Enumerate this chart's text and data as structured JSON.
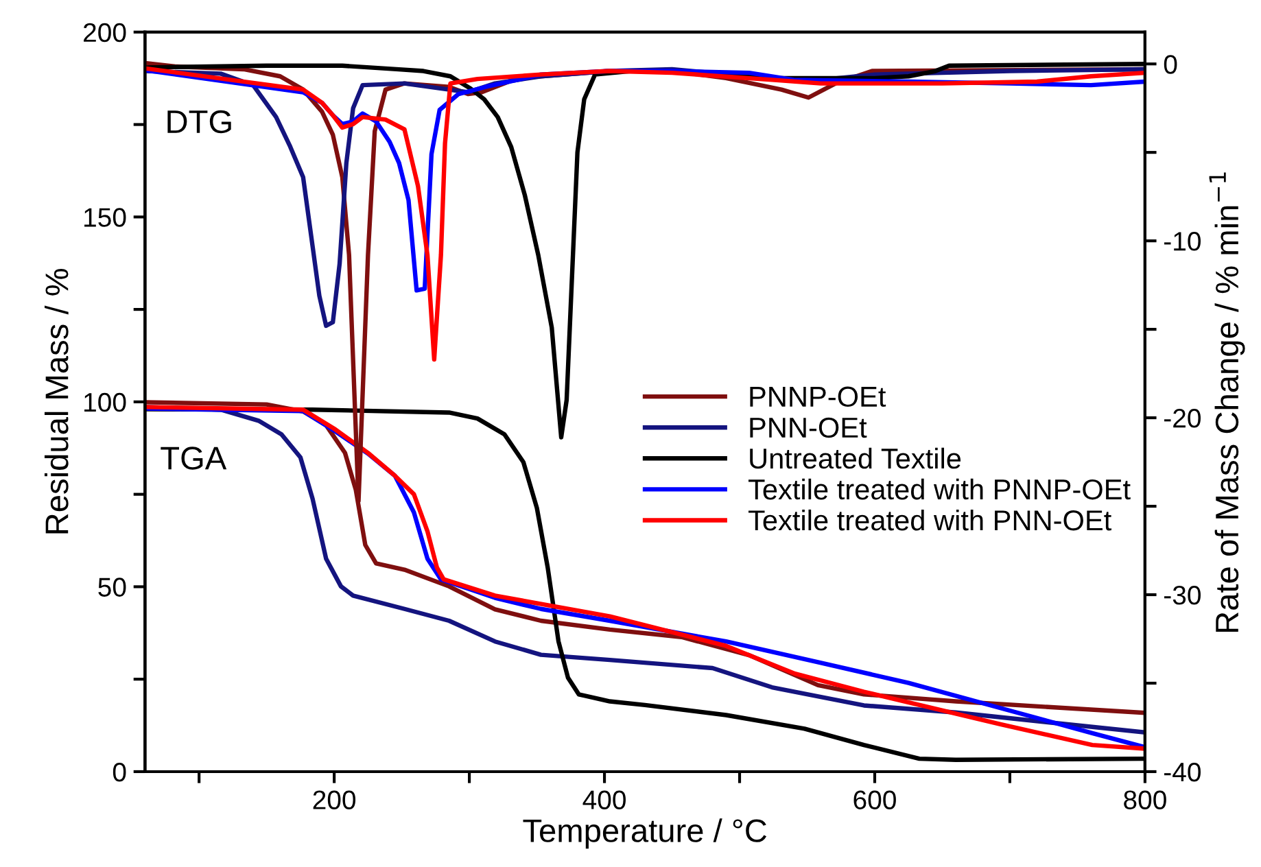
{
  "chart_data": {
    "type": "line",
    "xlabel": "Temperature / °C",
    "ylabel": "Residual Mass / %",
    "y2label": "Rate of Mass Change / % min$^{−1}$",
    "xlim": [
      60,
      800
    ],
    "xticks": [
      {
        "value": 100,
        "label": null
      },
      200,
      {
        "value": 300,
        "label": null
      },
      400,
      {
        "value": 500,
        "label": null
      },
      600,
      {
        "value": 700,
        "label": null
      },
      800
    ],
    "ylim": [
      0,
      200
    ],
    "yticks": [
      0,
      {
        "value": 25,
        "label": null
      },
      50,
      {
        "value": 75,
        "label": null
      },
      100,
      {
        "value": 125,
        "label": null
      },
      150,
      {
        "value": 175,
        "label": null
      },
      200
    ],
    "y2lim": [
      -40,
      1.8
    ],
    "y2ticks": [
      -40,
      {
        "value": -35,
        "label": null
      },
      -30,
      {
        "value": -25,
        "label": null
      },
      -20,
      {
        "value": -15,
        "label": null
      },
      -10,
      {
        "value": -5,
        "label": null
      },
      0
    ],
    "grid": false,
    "legend": "right",
    "line_style": "solid",
    "annotations": [
      "DTG",
      "TGA"
    ],
    "series": [
      {
        "name": "PNNP-OEt",
        "color": "#7f0f0f",
        "x": [
          60,
          150,
          177,
          194,
          208,
          216,
          223,
          231,
          252,
          285,
          319,
          353,
          404,
          457,
          507,
          558,
          592,
          660,
          800
        ],
        "values": [
          99.9,
          99.3,
          97.4,
          93.7,
          86.2,
          76.2,
          61.3,
          56.3,
          54.6,
          50.1,
          43.9,
          40.8,
          38.4,
          36.4,
          31.5,
          23.4,
          20.9,
          19.0,
          15.9
        ]
      },
      {
        "name": "PNN-OEt",
        "color": "#14147f",
        "x": [
          60,
          116,
          144,
          161,
          175,
          184,
          194,
          205,
          214,
          252,
          285,
          319,
          353,
          404,
          480,
          524,
          592,
          660,
          727,
          800
        ],
        "values": [
          98.6,
          97.9,
          94.9,
          91.2,
          85.0,
          73.8,
          57.6,
          50.1,
          47.6,
          44.0,
          40.8,
          35.2,
          31.6,
          30.2,
          28.0,
          22.8,
          17.9,
          16.0,
          13.4,
          10.6
        ]
      },
      {
        "name": "Untreated Textile",
        "color": "#000000",
        "x": [
          60,
          184,
          285,
          306,
          326,
          340,
          350,
          358,
          366,
          373,
          381,
          404,
          430,
          490,
          548,
          592,
          633,
          660,
          800
        ],
        "values": [
          98.0,
          97.9,
          97.1,
          95.5,
          91.2,
          83.7,
          71.3,
          55.2,
          35.2,
          25.4,
          20.9,
          19.0,
          18.0,
          15.3,
          11.6,
          7.2,
          3.5,
          3.2,
          3.5
        ]
      },
      {
        "name": "Textile treated with PNNP-OEt",
        "color": "#0000ff",
        "x": [
          60,
          177,
          201,
          225,
          245,
          259,
          269,
          279,
          319,
          353,
          404,
          490,
          558,
          625,
          693,
          761,
          800
        ],
        "values": [
          98.2,
          97.5,
          92.0,
          86.0,
          80.0,
          70.1,
          57.6,
          52.0,
          47.0,
          44.0,
          40.8,
          35.2,
          29.6,
          24.0,
          17.2,
          10.4,
          6.6
        ]
      },
      {
        "name": "Textile treated with PNN-OEt",
        "color": "#ff0000",
        "x": [
          60,
          177,
          201,
          225,
          245,
          259,
          269,
          276,
          281,
          319,
          404,
          490,
          541,
          592,
          693,
          761,
          800
        ],
        "values": [
          98.6,
          97.9,
          92.5,
          86.2,
          80.0,
          75.0,
          65.0,
          55.2,
          52.0,
          47.6,
          42.0,
          34.0,
          26.5,
          21.6,
          12.8,
          7.2,
          6.2
        ]
      },
      {
        "color": "#7f0f0f",
        "axis": "y2",
        "x": [
          60,
          83,
          133,
          160,
          177,
          191,
          199,
          206,
          211,
          218,
          225,
          230,
          238,
          252,
          285,
          299,
          309,
          336,
          404,
          450,
          490,
          531,
          551,
          571,
          598,
          800
        ],
        "values": [
          0.05,
          -0.15,
          -0.3,
          -0.7,
          -1.45,
          -2.7,
          -4.0,
          -6.4,
          -10.8,
          -24.7,
          -10.8,
          -3.8,
          -1.45,
          -1.1,
          -1.3,
          -1.7,
          -1.6,
          -0.8,
          -0.4,
          -0.4,
          -0.8,
          -1.45,
          -1.9,
          -1.1,
          -0.4,
          -0.3
        ]
      },
      {
        "color": "#14147f",
        "axis": "y2",
        "x": [
          60,
          116,
          140,
          157,
          167,
          177,
          184,
          189,
          194,
          199,
          204,
          209,
          214,
          221,
          252,
          285,
          299,
          319,
          353,
          404,
          450,
          524,
          560,
          600,
          700,
          800
        ],
        "values": [
          -0.4,
          -0.55,
          -1.2,
          -3.0,
          -4.6,
          -6.4,
          -10.3,
          -13.1,
          -14.8,
          -14.6,
          -11.3,
          -5.6,
          -2.5,
          -1.2,
          -1.1,
          -1.45,
          -1.6,
          -1.1,
          -0.7,
          -0.4,
          -0.3,
          -0.8,
          -0.9,
          -0.6,
          -0.4,
          -0.3
        ]
      },
      {
        "color": "#000000",
        "axis": "y2",
        "x": [
          60,
          150,
          206,
          246,
          266,
          286,
          301,
          311,
          321,
          331,
          341,
          351,
          361,
          368,
          372,
          376,
          380,
          385,
          393,
          420,
          480,
          524,
          600,
          625,
          645,
          655,
          800
        ],
        "values": [
          -0.2,
          -0.1,
          -0.1,
          -0.3,
          -0.4,
          -0.7,
          -1.4,
          -2.0,
          -3.0,
          -4.7,
          -7.4,
          -10.8,
          -14.9,
          -21.1,
          -19.0,
          -12.0,
          -5.0,
          -2.0,
          -0.6,
          -0.4,
          -0.5,
          -0.8,
          -0.8,
          -0.7,
          -0.4,
          -0.1,
          0.0
        ]
      },
      {
        "color": "#0000ff",
        "axis": "y2",
        "x": [
          60,
          177,
          191,
          199,
          206,
          214,
          221,
          231,
          241,
          248,
          255,
          261,
          267,
          272,
          278,
          292,
          312,
          353,
          404,
          450,
          507,
          540,
          625,
          700,
          760,
          800
        ],
        "values": [
          -0.35,
          -1.6,
          -2.2,
          -2.9,
          -3.4,
          -3.25,
          -2.8,
          -3.25,
          -4.4,
          -5.6,
          -7.7,
          -12.8,
          -12.7,
          -5.1,
          -2.6,
          -1.7,
          -1.3,
          -0.6,
          -0.4,
          -0.4,
          -0.5,
          -0.9,
          -1.0,
          -1.1,
          -1.2,
          -1.0
        ]
      },
      {
        "color": "#ff0000",
        "axis": "y2",
        "x": [
          60,
          177,
          191,
          199,
          206,
          214,
          221,
          238,
          252,
          262,
          269,
          274,
          279,
          282,
          286,
          306,
          353,
          404,
          450,
          524,
          560,
          650,
          720,
          760,
          800
        ],
        "values": [
          -0.25,
          -1.45,
          -2.2,
          -2.9,
          -3.6,
          -3.4,
          -3.0,
          -3.15,
          -3.7,
          -6.9,
          -10.8,
          -16.7,
          -10.8,
          -4.5,
          -1.1,
          -0.85,
          -0.6,
          -0.4,
          -0.5,
          -0.9,
          -1.1,
          -1.1,
          -1.0,
          -0.7,
          -0.5
        ]
      }
    ]
  }
}
